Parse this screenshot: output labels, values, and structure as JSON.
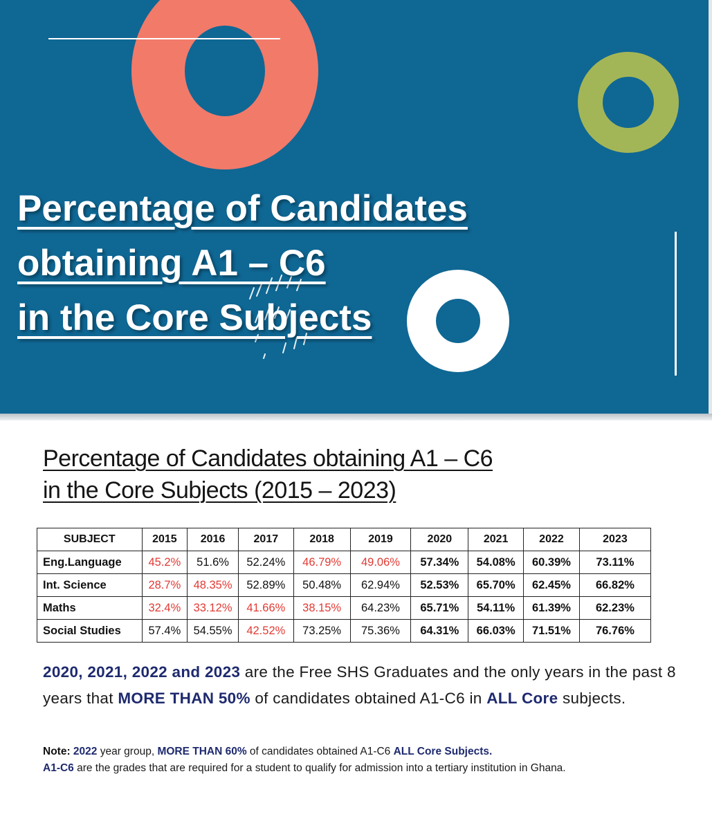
{
  "slide": {
    "title_lines": [
      "Percentage of Candidates",
      "obtaining A1 – C6",
      "in the Core Subjects"
    ],
    "accent_colors": {
      "background": "#0f6794",
      "coral": "#f27a69",
      "green": "#a3b657",
      "white": "#ffffff"
    }
  },
  "infographic": {
    "title_lines": [
      "Percentage of Candidates obtaining A1 – C6",
      "in the Core Subjects (2015 – 2023)"
    ],
    "table": {
      "headers": [
        "SUBJECT",
        "2015",
        "2016",
        "2017",
        "2018",
        "2019",
        "2020",
        "2021",
        "2022",
        "2023"
      ],
      "rows": [
        {
          "subject": "Eng.Language",
          "values": [
            "45.2%",
            "51.6%",
            "52.24%",
            "46.79%",
            "49.06%",
            "57.34%",
            "54.08%",
            "60.39%",
            "73.11%"
          ]
        },
        {
          "subject": "Int. Science",
          "values": [
            "28.7%",
            "48.35%",
            "52.89%",
            "50.48%",
            "62.94%",
            "52.53%",
            "65.70%",
            "62.45%",
            "66.82%"
          ]
        },
        {
          "subject": "Maths",
          "values": [
            "32.4%",
            "33.12%",
            "41.66%",
            "38.15%",
            "64.23%",
            "65.71%",
            "54.11%",
            "61.39%",
            "62.23%"
          ]
        },
        {
          "subject": "Social Studies",
          "values": [
            "57.4%",
            "54.55%",
            "42.52%",
            "73.25%",
            "75.36%",
            "64.31%",
            "66.03%",
            "71.51%",
            "76.76%"
          ]
        }
      ],
      "colors": {
        "below_50": "#e03a33",
        "normal": "#111111"
      }
    },
    "summary": {
      "years": "2020, 2021, 2022 and 2023",
      "text1": " are the Free SHS Graduates and the only years in the past 8 years that ",
      "highlight": "MORE THAN 50%",
      "text2": " of candidates obtained A1-C6 in ",
      "all_core": "ALL Core",
      "text3": " subjects."
    },
    "note": {
      "label": "Note:",
      "year_group": " 2022",
      "text1": " year group, ",
      "more_than": "MORE THAN 60%",
      "text2": " of candidates obtained A1-C6 ",
      "all_core": "ALL Core Subjects.",
      "grades": "A1-C6",
      "text3": " are the grades that are required for a student to qualify for admission into a tertiary institution in Ghana."
    },
    "highlight_color": "#1e2a6e"
  }
}
